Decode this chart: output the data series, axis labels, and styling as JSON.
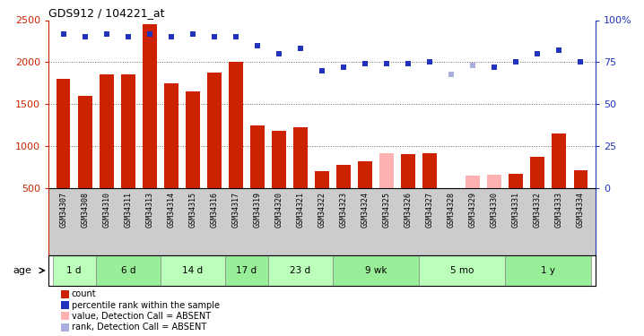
{
  "title": "GDS912 / 104221_at",
  "samples": [
    "GSM34307",
    "GSM34308",
    "GSM34310",
    "GSM34311",
    "GSM34313",
    "GSM34314",
    "GSM34315",
    "GSM34316",
    "GSM34317",
    "GSM34319",
    "GSM34320",
    "GSM34321",
    "GSM34322",
    "GSM34323",
    "GSM34324",
    "GSM34325",
    "GSM34326",
    "GSM34327",
    "GSM34328",
    "GSM34329",
    "GSM34330",
    "GSM34331",
    "GSM34332",
    "GSM34333",
    "GSM34334"
  ],
  "count_values": [
    1800,
    1600,
    1850,
    1850,
    2450,
    1750,
    1650,
    1875,
    2000,
    1250,
    1180,
    1230,
    700,
    780,
    820,
    920,
    900,
    920,
    500,
    650,
    660,
    670,
    875,
    1150,
    710
  ],
  "absent_count": [
    false,
    false,
    false,
    false,
    false,
    false,
    false,
    false,
    false,
    false,
    false,
    false,
    false,
    false,
    false,
    true,
    false,
    false,
    true,
    true,
    true,
    false,
    false,
    false,
    false
  ],
  "percentile_values": [
    92,
    90,
    92,
    90,
    92,
    90,
    92,
    90,
    90,
    85,
    80,
    83,
    70,
    72,
    74,
    74,
    74,
    75,
    68,
    73,
    72,
    75,
    80,
    82,
    75
  ],
  "absent_rank": [
    false,
    false,
    false,
    false,
    false,
    false,
    false,
    false,
    false,
    false,
    false,
    false,
    false,
    false,
    false,
    false,
    false,
    false,
    true,
    true,
    false,
    false,
    false,
    false,
    false
  ],
  "age_groups": [
    {
      "label": "1 d",
      "start": 0,
      "end": 2
    },
    {
      "label": "6 d",
      "start": 2,
      "end": 5
    },
    {
      "label": "14 d",
      "start": 5,
      "end": 8
    },
    {
      "label": "17 d",
      "start": 8,
      "end": 10
    },
    {
      "label": "23 d",
      "start": 10,
      "end": 13
    },
    {
      "label": "9 wk",
      "start": 13,
      "end": 17
    },
    {
      "label": "5 mo",
      "start": 17,
      "end": 21
    },
    {
      "label": "1 y",
      "start": 21,
      "end": 25
    }
  ],
  "ymin": 500,
  "ymax": 2500,
  "yticks_left": [
    500,
    1000,
    1500,
    2000,
    2500
  ],
  "ytick_labels_left": [
    "500",
    "1000",
    "1500",
    "2000",
    "2500"
  ],
  "y2ticks": [
    0,
    25,
    50,
    75,
    100
  ],
  "y2tick_labels": [
    "0",
    "25",
    "50",
    "75",
    "100%"
  ],
  "grid_lines": [
    1000,
    1500,
    2000
  ],
  "bar_color_normal": "#cc2200",
  "bar_color_absent": "#ffb0b0",
  "dot_color_normal": "#2233bb",
  "dot_color_absent": "#aab0dd",
  "bg_color_labels": "#cccccc",
  "bg_color_age1": "#99ee99",
  "bg_color_age2": "#bbffbb",
  "grid_color": "#666666",
  "legend_items": [
    {
      "color": "#cc2200",
      "text": "count"
    },
    {
      "color": "#2233bb",
      "text": "percentile rank within the sample"
    },
    {
      "color": "#ffb0b0",
      "text": "value, Detection Call = ABSENT"
    },
    {
      "color": "#aab0dd",
      "text": "rank, Detection Call = ABSENT"
    }
  ]
}
